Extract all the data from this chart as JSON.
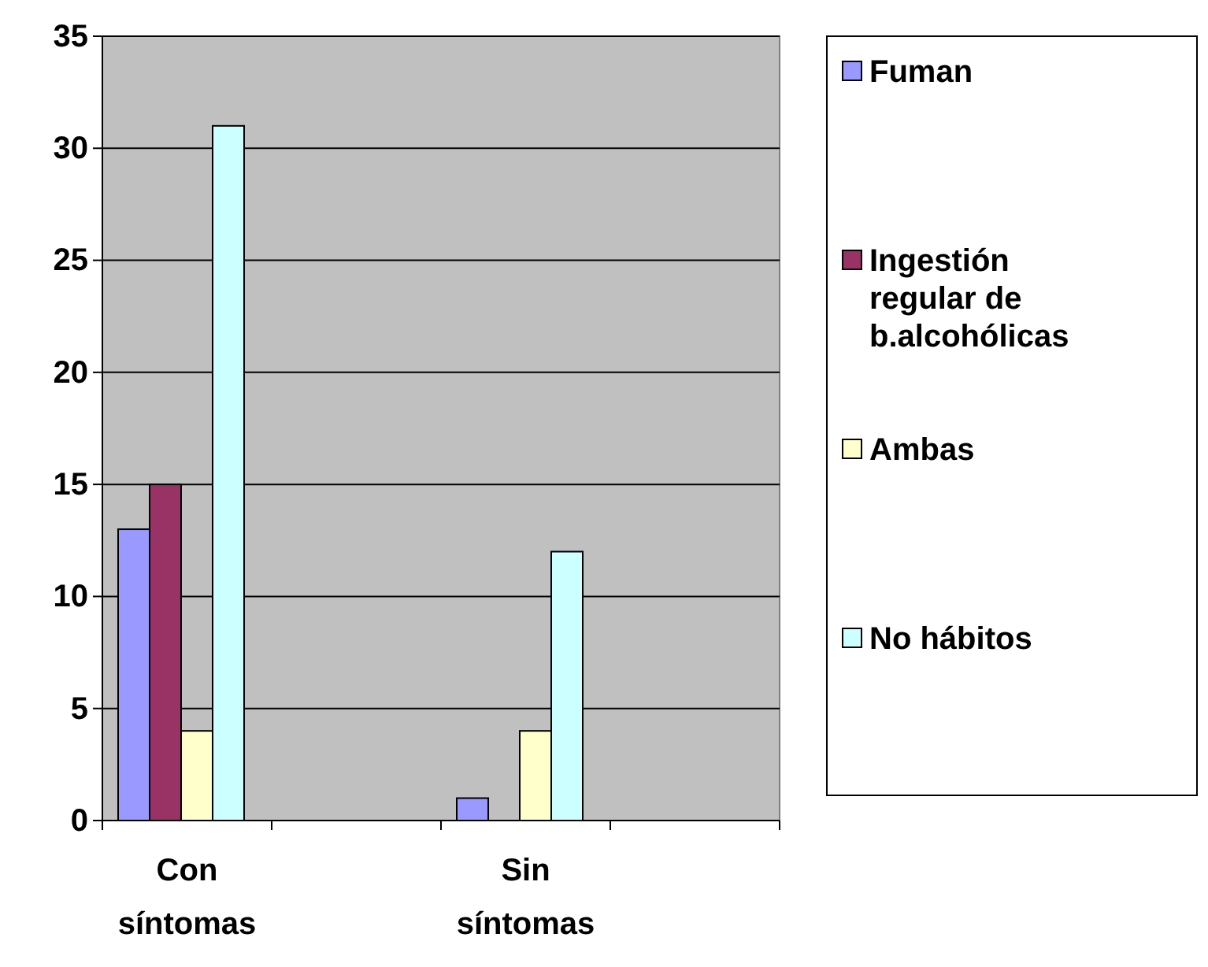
{
  "chart_data": {
    "type": "bar",
    "categories": [
      "Con síntomas",
      null,
      "Sin síntomas",
      null
    ],
    "series": [
      {
        "name": "Fuman",
        "color": "#9999ff",
        "values": [
          13,
          null,
          1,
          null
        ]
      },
      {
        "name": "Ingestión regular de b.alcohólicas",
        "color": "#993366",
        "values": [
          15,
          null,
          0,
          null
        ]
      },
      {
        "name": "Ambas",
        "color": "#ffffcc",
        "values": [
          4,
          null,
          4,
          null
        ]
      },
      {
        "name": "No hábitos",
        "color": "#ccffff",
        "values": [
          31,
          null,
          12,
          null
        ]
      }
    ],
    "ylim": [
      0,
      35
    ],
    "yticks": [
      0,
      5,
      10,
      15,
      20,
      25,
      30,
      35
    ],
    "grid": "y",
    "legend": "right"
  }
}
